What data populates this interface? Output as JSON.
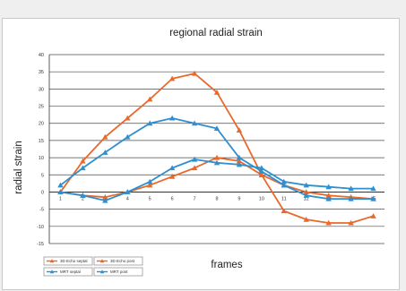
{
  "chart_data": {
    "type": "line",
    "title": "regional radial strain",
    "xlabel": "frames",
    "ylabel": "radial strain",
    "x": [
      1,
      2,
      3,
      4,
      5,
      6,
      7,
      8,
      9,
      10,
      11,
      12,
      13,
      14,
      15
    ],
    "x_tick_labels": [
      "1",
      "2",
      "3",
      "4",
      "5",
      "6",
      "7",
      "8",
      "9",
      "10",
      "11",
      "12",
      "13",
      "14",
      "15"
    ],
    "ylim": [
      -15,
      40
    ],
    "y_ticks": [
      -15,
      -10,
      -5,
      0,
      5,
      10,
      15,
      20,
      25,
      30,
      35,
      40
    ],
    "y_tick_labels": [
      "-15",
      "-10",
      "-5",
      "0",
      "5",
      "10",
      "15",
      "20",
      "25",
      "30",
      "35",
      "40"
    ],
    "grid": true,
    "legend_position": "bottom-left",
    "series": [
      {
        "name": "3D Echo septal",
        "color": "#e8692a",
        "marker": "triangle",
        "values": [
          0,
          -1,
          -1.5,
          0,
          2,
          4.5,
          7,
          10,
          9,
          5,
          2,
          0,
          -1,
          -1.5,
          -2
        ]
      },
      {
        "name": "3D Echo post",
        "color": "#e8692a",
        "marker": "triangle",
        "values": [
          0,
          9,
          16,
          21.5,
          27,
          33,
          34.5,
          29,
          18,
          5,
          -5.5,
          -8,
          -9,
          -9,
          -7
        ]
      },
      {
        "name": "MRT septal",
        "color": "#2f8fd0",
        "marker": "triangle",
        "values": [
          0,
          -1,
          -2.5,
          0,
          3,
          7,
          9.5,
          8.5,
          8,
          7,
          3,
          2,
          1.5,
          1,
          1
        ]
      },
      {
        "name": "MRT post",
        "color": "#2f8fd0",
        "marker": "triangle",
        "values": [
          2,
          7,
          11.5,
          16,
          20,
          21.5,
          20,
          18.5,
          10,
          6,
          2,
          -1,
          -2,
          -2,
          -2
        ]
      }
    ]
  }
}
